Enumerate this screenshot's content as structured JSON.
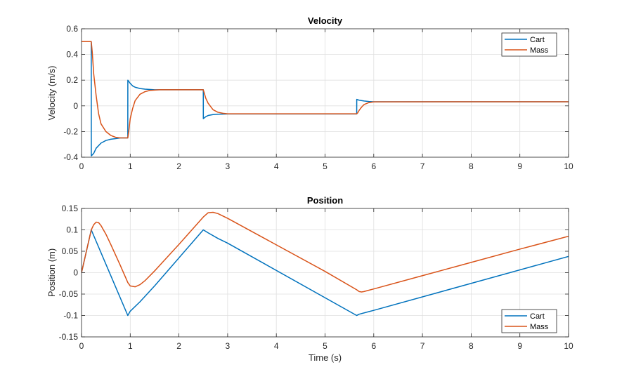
{
  "chart_data": [
    {
      "type": "line",
      "title": "Velocity",
      "xlabel": "",
      "ylabel": "Velocity (m/s)",
      "xlim": [
        0,
        10
      ],
      "ylim": [
        -0.4,
        0.6
      ],
      "xticks": [
        0,
        1,
        2,
        3,
        4,
        5,
        6,
        7,
        8,
        9,
        10
      ],
      "yticks": [
        -0.4,
        -0.2,
        0,
        0.2,
        0.4,
        0.6
      ],
      "grid": true,
      "legend": "top-right",
      "series": [
        {
          "name": "Cart",
          "color": "#0072BD",
          "x": [
            0,
            0.2,
            0.2,
            0.201,
            0.25,
            0.3,
            0.4,
            0.5,
            0.6,
            0.7,
            0.8,
            0.95,
            0.95,
            0.951,
            1.0,
            1.05,
            1.1,
            1.2,
            1.3,
            1.5,
            2.5,
            2.5,
            2.501,
            2.55,
            2.6,
            2.7,
            2.8,
            3.0,
            5.65,
            5.65,
            5.651,
            5.7,
            5.8,
            5.9,
            6.0,
            10
          ],
          "y": [
            0.5,
            0.5,
            0.5,
            -0.39,
            -0.37,
            -0.33,
            -0.29,
            -0.27,
            -0.26,
            -0.255,
            -0.25,
            -0.25,
            -0.25,
            0.2,
            0.175,
            0.155,
            0.145,
            0.135,
            0.13,
            0.125,
            0.125,
            0.125,
            -0.1,
            -0.085,
            -0.075,
            -0.068,
            -0.065,
            -0.063,
            -0.063,
            -0.063,
            0.05,
            0.044,
            0.038,
            0.034,
            0.032,
            0.032
          ]
        },
        {
          "name": "Mass",
          "color": "#D95319",
          "x": [
            0,
            0.2,
            0.22,
            0.25,
            0.3,
            0.35,
            0.4,
            0.5,
            0.6,
            0.7,
            0.8,
            0.95,
            0.97,
            1.0,
            1.05,
            1.1,
            1.2,
            1.3,
            1.4,
            1.6,
            2.5,
            2.52,
            2.55,
            2.6,
            2.7,
            2.8,
            2.9,
            3.0,
            5.65,
            5.67,
            5.7,
            5.75,
            5.8,
            5.9,
            6.0,
            10
          ],
          "y": [
            0.5,
            0.5,
            0.42,
            0.25,
            0.08,
            -0.06,
            -0.14,
            -0.2,
            -0.23,
            -0.245,
            -0.25,
            -0.25,
            -0.2,
            -0.1,
            -0.02,
            0.04,
            0.09,
            0.11,
            0.12,
            0.125,
            0.125,
            0.1,
            0.06,
            0.02,
            -0.03,
            -0.05,
            -0.058,
            -0.062,
            -0.062,
            -0.055,
            -0.035,
            -0.01,
            0.01,
            0.025,
            0.031,
            0.032
          ]
        }
      ]
    },
    {
      "type": "line",
      "title": "Position",
      "xlabel": "Time (s)",
      "ylabel": "Position (m)",
      "xlim": [
        0,
        10
      ],
      "ylim": [
        -0.15,
        0.15
      ],
      "xticks": [
        0,
        1,
        2,
        3,
        4,
        5,
        6,
        7,
        8,
        9,
        10
      ],
      "yticks": [
        -0.15,
        -0.1,
        -0.05,
        0,
        0.05,
        0.1,
        0.15
      ],
      "grid": true,
      "legend": "bottom-right",
      "series": [
        {
          "name": "Cart",
          "color": "#0072BD",
          "x": [
            0,
            0.2,
            0.95,
            1.0,
            1.2,
            1.5,
            2.5,
            2.6,
            2.8,
            3.0,
            5.65,
            5.7,
            5.9,
            6.0,
            10
          ],
          "y": [
            0,
            0.1,
            -0.1,
            -0.09,
            -0.068,
            -0.031,
            0.1,
            0.093,
            0.08,
            0.069,
            -0.1,
            -0.097,
            -0.091,
            -0.088,
            0.038
          ]
        },
        {
          "name": "Mass",
          "color": "#D95319",
          "x": [
            0,
            0.1,
            0.2,
            0.25,
            0.3,
            0.35,
            0.4,
            0.5,
            0.6,
            0.7,
            0.8,
            0.9,
            0.95,
            1.0,
            1.1,
            1.2,
            1.3,
            1.5,
            2.0,
            2.5,
            2.6,
            2.7,
            2.8,
            3.0,
            4.0,
            5.0,
            5.65,
            5.7,
            5.75,
            5.8,
            5.9,
            6.0,
            7.0,
            8.0,
            9.0,
            10
          ],
          "y": [
            0,
            0.05,
            0.1,
            0.112,
            0.118,
            0.117,
            0.11,
            0.09,
            0.066,
            0.041,
            0.016,
            -0.01,
            -0.023,
            -0.031,
            -0.033,
            -0.028,
            -0.019,
            0.004,
            0.066,
            0.13,
            0.14,
            0.141,
            0.138,
            0.127,
            0.065,
            0.003,
            -0.04,
            -0.044,
            -0.045,
            -0.044,
            -0.041,
            -0.038,
            -0.007,
            0.024,
            0.055,
            0.085
          ]
        }
      ]
    }
  ]
}
